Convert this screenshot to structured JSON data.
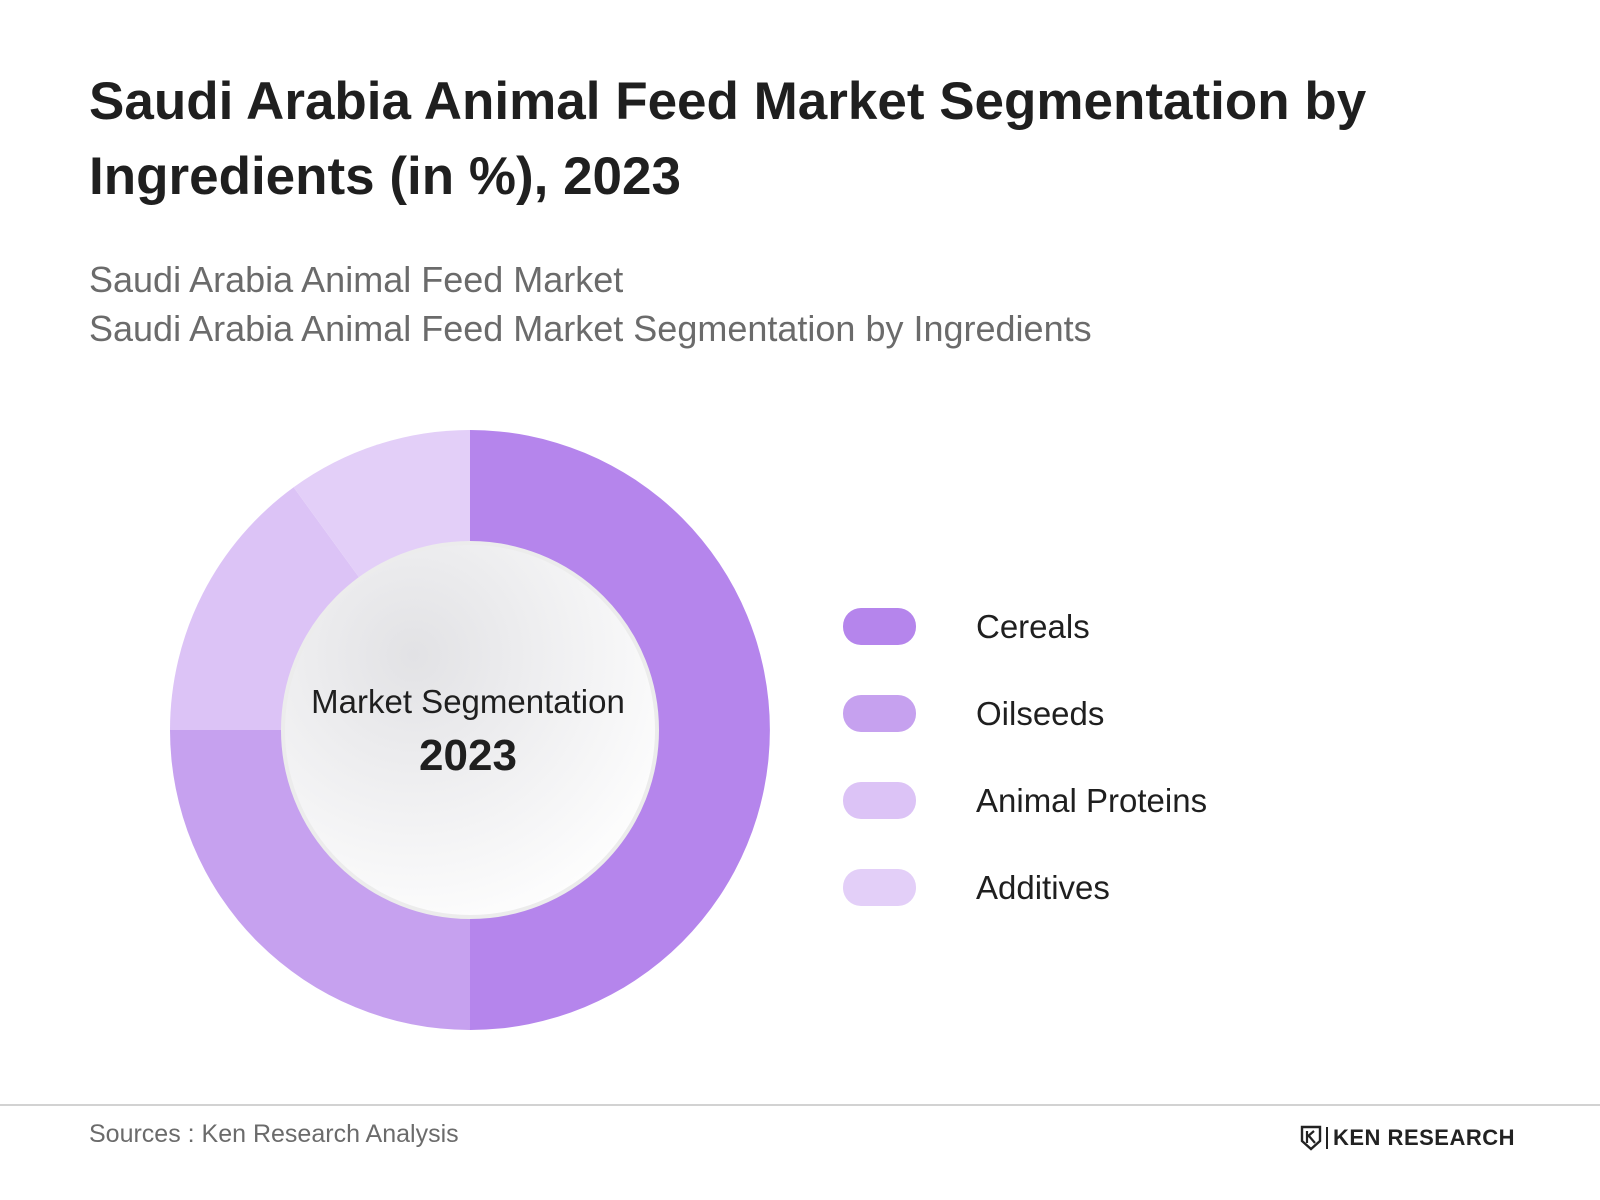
{
  "header": {
    "title": "Saudi Arabia Animal Feed Market Segmentation by Ingredients (in %), 2023",
    "subtitle_line1": "Saudi Arabia Animal Feed Market",
    "subtitle_line2": "Saudi Arabia Animal Feed Market Segmentation by Ingredients"
  },
  "center": {
    "label": "Market Segmentation",
    "year": "2023"
  },
  "chart_data": {
    "type": "pie",
    "title": "Saudi Arabia Animal Feed Market Segmentation by Ingredients (in %), 2023",
    "categories": [
      "Cereals",
      "Oilseeds",
      "Animal Proteins",
      "Additives"
    ],
    "values": [
      50,
      25,
      15,
      10
    ],
    "colors": [
      "#b585ec",
      "#c6a1ef",
      "#dcc3f6",
      "#e3cff8"
    ],
    "donut": true,
    "legend_position": "right"
  },
  "footer": {
    "source": "Sources : Ken Research Analysis",
    "brand": "KEN RESEARCH",
    "brand_icon": "ken-research-logo-icon"
  }
}
